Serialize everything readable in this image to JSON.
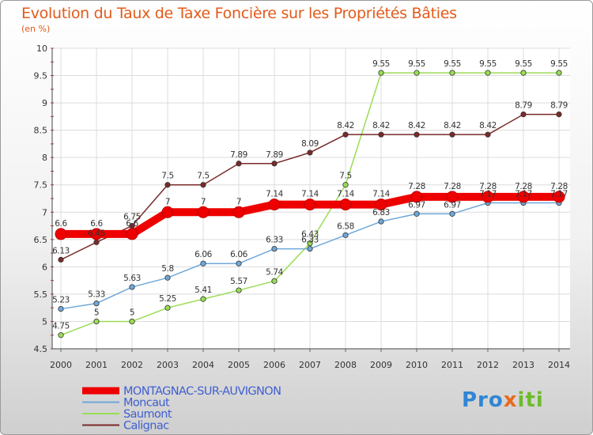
{
  "chart_data": {
    "type": "line",
    "title": "Evolution du Taux de Taxe Foncière sur les Propriétés Bâties",
    "ylabel": "(en %)",
    "xlabel": "",
    "x": [
      "2000",
      "2001",
      "2002",
      "2003",
      "2004",
      "2005",
      "2006",
      "2007",
      "2008",
      "2009",
      "2010",
      "2011",
      "2012",
      "2013",
      "2014"
    ],
    "ylim": [
      4.5,
      10
    ],
    "yticks": [
      "4.5",
      "5",
      "5.5",
      "6",
      "6.5",
      "7",
      "7.5",
      "8",
      "8.5",
      "9",
      "9.5",
      "10"
    ],
    "grid": true,
    "legend_position": "bottom-left",
    "series": [
      {
        "name": "MONTAGNAC-SUR-AUVIGNON",
        "color": "#ee0000",
        "values": [
          6.6,
          6.6,
          6.6,
          7,
          7,
          7,
          7.14,
          7.14,
          7.14,
          7.14,
          7.28,
          7.28,
          7.28,
          7.28,
          7.28
        ],
        "labels": [
          "6.6",
          "6.6",
          "6.6",
          "7",
          "7",
          "7",
          "7.14",
          "7.14",
          "7.14",
          "7.14",
          "7.28",
          "7.28",
          "7.28",
          "7.28",
          "7.28"
        ]
      },
      {
        "name": "Moncaut",
        "color": "#6fa8d8",
        "values": [
          5.23,
          5.33,
          5.63,
          5.8,
          6.06,
          6.06,
          6.33,
          6.33,
          6.58,
          6.83,
          6.97,
          6.97,
          7.17,
          7.17,
          7.17
        ],
        "labels": [
          "5.23",
          "5.33",
          "5.63",
          "5.8",
          "6.06",
          "6.06",
          "6.33",
          "6.33",
          "6.58",
          "6.83",
          "6.97",
          "6.97",
          "7.17",
          "7.17",
          "7.17"
        ]
      },
      {
        "name": "Saumont",
        "color": "#99dd55",
        "values": [
          4.75,
          5,
          5,
          5.25,
          5.41,
          5.57,
          5.74,
          6.43,
          7.5,
          9.55,
          9.55,
          9.55,
          9.55,
          9.55,
          9.55
        ],
        "labels": [
          "4.75",
          "5",
          "5",
          "5.25",
          "5.41",
          "5.57",
          "5.74",
          "6.43",
          "7.5",
          "9.55",
          "9.55",
          "9.55",
          "9.55",
          "9.55",
          "9.55"
        ]
      },
      {
        "name": "Calignac",
        "color": "#7a2a2a",
        "values": [
          6.13,
          6.45,
          6.75,
          7.5,
          7.5,
          7.89,
          7.89,
          8.09,
          8.42,
          8.42,
          8.42,
          8.42,
          8.42,
          8.79,
          8.79
        ],
        "labels": [
          "6.13",
          "6.45",
          "6.75",
          "7.5",
          "7.5",
          "7.89",
          "7.89",
          "8.09",
          "8.42",
          "8.42",
          "8.42",
          "8.42",
          "8.42",
          "8.79",
          "8.79"
        ]
      }
    ]
  },
  "logo_text": "Proxiti"
}
